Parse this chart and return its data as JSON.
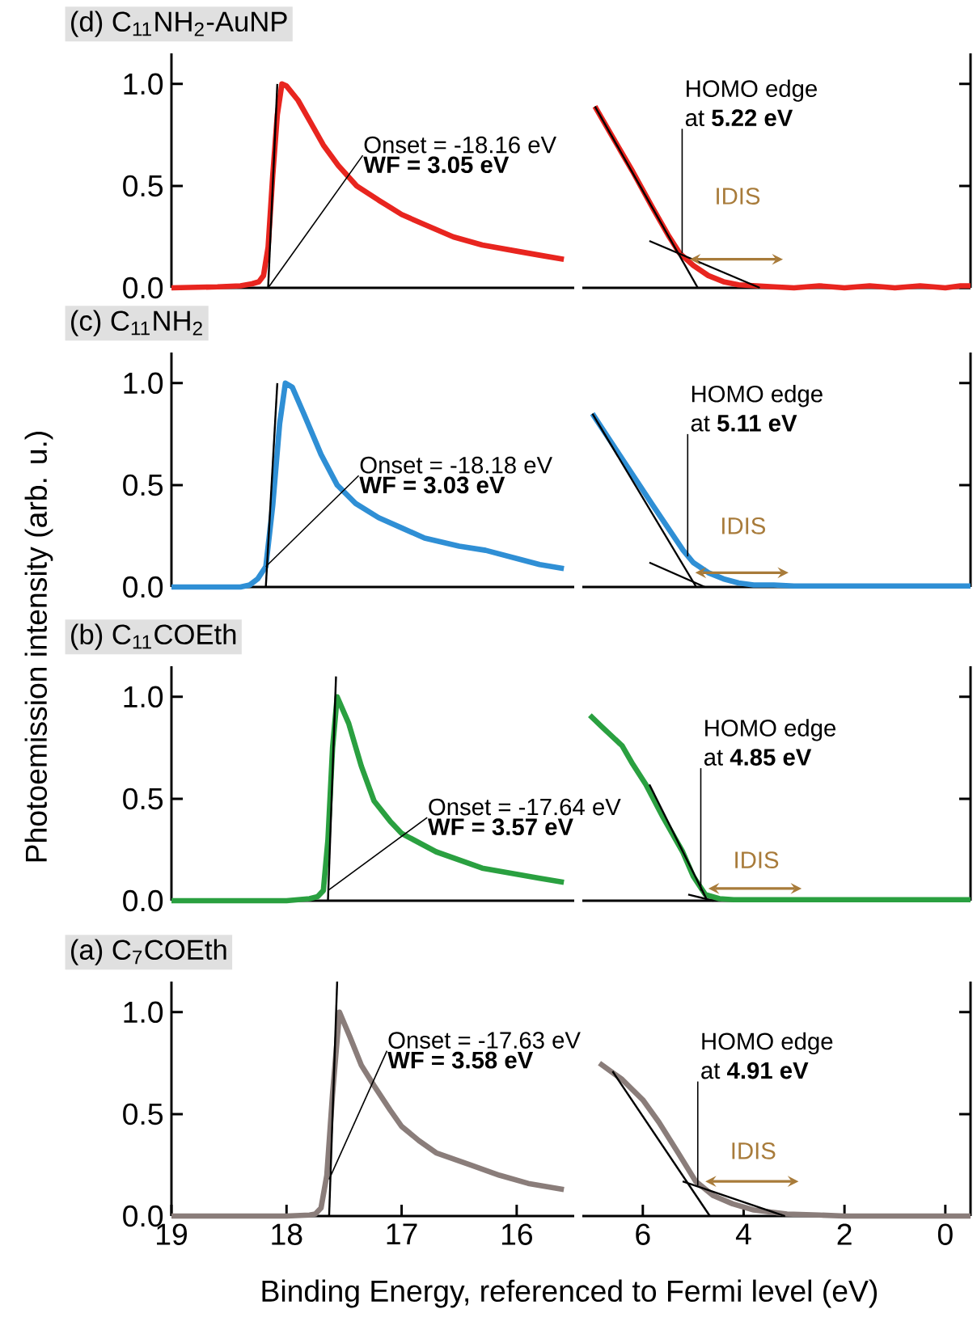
{
  "chart_data": [
    {
      "type": "line",
      "title": "(d) C$_{11}$NH$_{2}$-AuNP",
      "xlim": [
        19,
        15.5
      ],
      "ylim": [
        0,
        1.15
      ],
      "xticks": [
        19,
        18,
        17,
        16
      ],
      "yticks": [
        {
          "value": 0,
          "label": "0.0"
        },
        {
          "value": 0.5,
          "label": "0.5"
        },
        {
          "value": 1,
          "label": "1.0"
        }
      ],
      "tick_labels": "y",
      "annotations": [
        {
          "text": "Onset = -18.16 eV",
          "x": 18.16,
          "y": 0
        },
        "WF = 3.05 eV"
      ],
      "series": [
        {
          "type": "line",
          "color": "#e8251f",
          "x": [
            19,
            18.6,
            18.4,
            18.3,
            18.24,
            18.2,
            18.16,
            18.12,
            18.08,
            18.04,
            18.0,
            17.9,
            17.8,
            17.68,
            17.55,
            17.39,
            17.2,
            17.0,
            16.8,
            16.55,
            16.3,
            16.0,
            15.8,
            15.59
          ],
          "values": [
            0,
            0.005,
            0.01,
            0.02,
            0.03,
            0.06,
            0.2,
            0.55,
            0.85,
            1.0,
            0.99,
            0.92,
            0.82,
            0.7,
            0.6,
            0.5,
            0.43,
            0.36,
            0.31,
            0.25,
            0.21,
            0.18,
            0.16,
            0.14
          ]
        },
        {
          "type": "line",
          "color": "#000000",
          "x": [
            18.16,
            18.08
          ],
          "values": [
            0,
            1.0
          ]
        }
      ]
    },
    {
      "type": "line",
      "xlim": [
        7.2,
        -0.5
      ],
      "ylim": [
        0,
        1.15
      ],
      "xticks": [
        6,
        4,
        2,
        0
      ],
      "yticks": [
        0.0,
        0.5,
        1.0
      ],
      "tick_labels": false,
      "annotations": [
        "HOMO edge",
        {
          "text": "at **5.22 eV**",
          "x": 5.22,
          "y": 0.17
        },
        "IDIS"
      ],
      "series": [
        {
          "type": "line",
          "color": "#e8251f",
          "x": [
            6.95,
            6.6,
            6.2,
            5.8,
            5.5,
            5.27,
            5.0,
            4.7,
            4.4,
            4.1,
            3.75,
            3.4,
            3.0,
            2.5,
            2.0,
            1.5,
            1.0,
            0.5,
            0,
            -0.3,
            -0.5
          ],
          "values": [
            0.89,
            0.74,
            0.57,
            0.39,
            0.26,
            0.17,
            0.11,
            0.06,
            0.03,
            0.015,
            0.01,
            0.005,
            0.0,
            0.01,
            0.0,
            0.01,
            0.0,
            0.01,
            0.0,
            0.01,
            0.01
          ]
        },
        {
          "type": "line",
          "color": "#000000",
          "x": [
            6.95,
            4.91
          ],
          "values": [
            0.89,
            0
          ]
        },
        {
          "type": "line",
          "color": "#000000",
          "x": [
            5.87,
            3.68
          ],
          "values": [
            0.23,
            0
          ]
        }
      ]
    },
    {
      "type": "line",
      "title": "(c) C$_{11}$NH$_{2}$",
      "xlim": [
        19,
        15.5
      ],
      "ylim": [
        0,
        1.15
      ],
      "xticks": [
        19,
        18,
        17,
        16
      ],
      "yticks": [
        {
          "value": 0,
          "label": "0.0"
        },
        {
          "value": 0.5,
          "label": "0.5"
        },
        {
          "value": 1,
          "label": "1.0"
        }
      ],
      "tick_labels": "y",
      "annotations": [
        {
          "text": "Onset = -18.18 eV",
          "x": 18.18,
          "y": 0.1
        },
        "WF = 3.03 eV"
      ],
      "series": [
        {
          "type": "line",
          "color": "#2f8fd5",
          "x": [
            19,
            18.6,
            18.4,
            18.32,
            18.25,
            18.18,
            18.12,
            18.06,
            18.01,
            17.95,
            17.85,
            17.7,
            17.56,
            17.4,
            17.2,
            17.0,
            16.8,
            16.5,
            16.27,
            16.0,
            15.8,
            15.59
          ],
          "values": [
            0,
            0,
            0,
            0.01,
            0.04,
            0.1,
            0.4,
            0.8,
            1.0,
            0.98,
            0.85,
            0.65,
            0.5,
            0.41,
            0.34,
            0.29,
            0.24,
            0.2,
            0.18,
            0.14,
            0.11,
            0.09
          ]
        },
        {
          "type": "line",
          "color": "#000000",
          "x": [
            18.18,
            18.08
          ],
          "values": [
            0,
            1.0
          ]
        }
      ]
    },
    {
      "type": "line",
      "xlim": [
        7.2,
        -0.5
      ],
      "ylim": [
        0,
        1.15
      ],
      "xticks": [
        6,
        4,
        2,
        0
      ],
      "yticks": [
        0.0,
        0.5,
        1.0
      ],
      "tick_labels": false,
      "annotations": [
        "HOMO edge",
        {
          "text": "at **5.11 eV**",
          "x": 5.11,
          "y": 0.15
        },
        "IDIS"
      ],
      "series": [
        {
          "type": "line",
          "color": "#2f8fd5",
          "x": [
            7.0,
            6.6,
            6.2,
            5.8,
            5.5,
            5.2,
            5.0,
            4.7,
            4.4,
            4.1,
            3.8,
            3.4,
            3.0,
            2.5,
            2.0,
            1.5,
            1.0,
            0.5,
            0,
            -0.5
          ],
          "values": [
            0.85,
            0.7,
            0.55,
            0.4,
            0.29,
            0.18,
            0.12,
            0.07,
            0.04,
            0.02,
            0.01,
            0.01,
            0.005,
            0.005,
            0.005,
            0.005,
            0.005,
            0.005,
            0.005,
            0.005
          ]
        },
        {
          "type": "line",
          "color": "#000000",
          "x": [
            7.0,
            4.94
          ],
          "values": [
            0.85,
            0
          ]
        },
        {
          "type": "line",
          "color": "#000000",
          "x": [
            5.87,
            4.77
          ],
          "values": [
            0.12,
            0
          ]
        }
      ]
    },
    {
      "type": "line",
      "title": "(b) C$_{11}$COEth",
      "xlim": [
        19,
        15.5
      ],
      "ylim": [
        0,
        1.15
      ],
      "xticks": [
        19,
        18,
        17,
        16
      ],
      "yticks": [
        {
          "value": 0,
          "label": "0.0"
        },
        {
          "value": 0.5,
          "label": "0.5"
        },
        {
          "value": 1,
          "label": "1.0"
        }
      ],
      "tick_labels": "y",
      "annotations": [
        {
          "text": "Onset = -17.64 eV",
          "x": 17.64,
          "y": 0.05
        },
        "WF = 3.57 eV"
      ],
      "series": [
        {
          "type": "line",
          "color": "#2aa040",
          "x": [
            19,
            18.5,
            18.0,
            17.8,
            17.73,
            17.68,
            17.64,
            17.6,
            17.56,
            17.46,
            17.35,
            17.24,
            17.1,
            17.0,
            16.7,
            16.3,
            16.0,
            15.8,
            15.59
          ],
          "values": [
            0,
            0,
            0,
            0.01,
            0.02,
            0.05,
            0.3,
            0.75,
            1.0,
            0.87,
            0.66,
            0.49,
            0.39,
            0.33,
            0.24,
            0.16,
            0.13,
            0.11,
            0.09
          ]
        },
        {
          "type": "line",
          "color": "#000000",
          "x": [
            17.64,
            17.57
          ],
          "values": [
            0,
            1.1
          ]
        }
      ]
    },
    {
      "type": "line",
      "xlim": [
        7.2,
        -0.5
      ],
      "ylim": [
        0,
        1.15
      ],
      "xticks": [
        6,
        4,
        2,
        0
      ],
      "yticks": [
        0.0,
        0.5,
        1.0
      ],
      "tick_labels": false,
      "annotations": [
        "HOMO edge",
        {
          "text": "at **4.85 eV**",
          "x": 4.85,
          "y": 0.05
        },
        "IDIS"
      ],
      "series": [
        {
          "type": "line",
          "color": "#2aa040",
          "x": [
            7.05,
            6.8,
            6.41,
            6.2,
            5.94,
            5.6,
            5.21,
            5.0,
            4.76,
            4.48,
            4.2,
            3.8,
            3.4,
            3.0,
            2.5,
            2.0,
            1.5,
            1.0,
            0.5,
            0,
            -0.5
          ],
          "values": [
            0.91,
            0.85,
            0.76,
            0.67,
            0.57,
            0.41,
            0.24,
            0.12,
            0.03,
            0.01,
            0.005,
            0.005,
            0.005,
            0.005,
            0.005,
            0.005,
            0.005,
            0.005,
            0.005,
            0.005,
            0.005
          ]
        },
        {
          "type": "line",
          "color": "#000000",
          "x": [
            5.87,
            4.72
          ],
          "values": [
            0.57,
            0
          ]
        },
        {
          "type": "line",
          "color": "#000000",
          "x": [
            5.1,
            4.6
          ],
          "values": [
            0.03,
            0
          ]
        }
      ]
    },
    {
      "type": "line",
      "title": "(a) C$_{7}$COEth",
      "xlabel": "Binding Energy, referenced to Fermi level (eV)",
      "ylabel": "Photoemission intensity (arb. u.)",
      "xlim": [
        19,
        15.5
      ],
      "ylim": [
        0,
        1.15
      ],
      "xticks": [
        19,
        18,
        17,
        16
      ],
      "yticks": [
        {
          "value": 0,
          "label": "0.0"
        },
        {
          "value": 0.5,
          "label": "0.5"
        },
        {
          "value": 1,
          "label": "1.0"
        }
      ],
      "annotations": [
        {
          "text": "Onset = -17.63 eV",
          "x": 17.63,
          "y": 0.18
        },
        "WF = 3.58 eV"
      ],
      "series": [
        {
          "type": "line",
          "color": "#8a7d7a",
          "x": [
            19,
            18.5,
            18.0,
            17.8,
            17.75,
            17.7,
            17.65,
            17.6,
            17.54,
            17.45,
            17.35,
            17.24,
            17.1,
            17.0,
            16.85,
            16.7,
            16.4,
            16.15,
            15.9,
            15.59
          ],
          "values": [
            0,
            0,
            0,
            0.005,
            0.01,
            0.04,
            0.2,
            0.6,
            1.0,
            0.88,
            0.74,
            0.64,
            0.52,
            0.44,
            0.37,
            0.31,
            0.25,
            0.2,
            0.16,
            0.13
          ]
        },
        {
          "type": "line",
          "color": "#000000",
          "x": [
            17.63,
            17.56
          ],
          "values": [
            0,
            1.15
          ]
        }
      ]
    },
    {
      "type": "line",
      "xlim": [
        7.2,
        -0.5
      ],
      "ylim": [
        0,
        1.15
      ],
      "xticks": [
        6,
        4,
        2,
        0
      ],
      "yticks": [
        0.0,
        0.5,
        1.0
      ],
      "tick_labels": "x",
      "annotations": [
        "HOMO edge",
        {
          "text": "at **4.91 eV**",
          "x": 4.91,
          "y": 0.15
        },
        "IDIS"
      ],
      "series": [
        {
          "type": "line",
          "color": "#8a7d7a",
          "x": [
            6.86,
            6.41,
            6.0,
            5.68,
            5.3,
            4.95,
            4.6,
            4.22,
            3.8,
            3.14,
            2.5,
            2.0,
            1.5,
            1.0,
            0.5,
            0,
            -0.5
          ],
          "values": [
            0.75,
            0.67,
            0.57,
            0.46,
            0.31,
            0.17,
            0.1,
            0.06,
            0.03,
            0.01,
            0.005,
            0,
            0,
            0,
            0,
            0,
            0
          ]
        },
        {
          "type": "line",
          "color": "#000000",
          "x": [
            6.6,
            4.67
          ],
          "values": [
            0.71,
            0
          ]
        },
        {
          "type": "line",
          "color": "#000000",
          "x": [
            5.21,
            3.18
          ],
          "values": [
            0.17,
            0
          ]
        }
      ]
    }
  ]
}
